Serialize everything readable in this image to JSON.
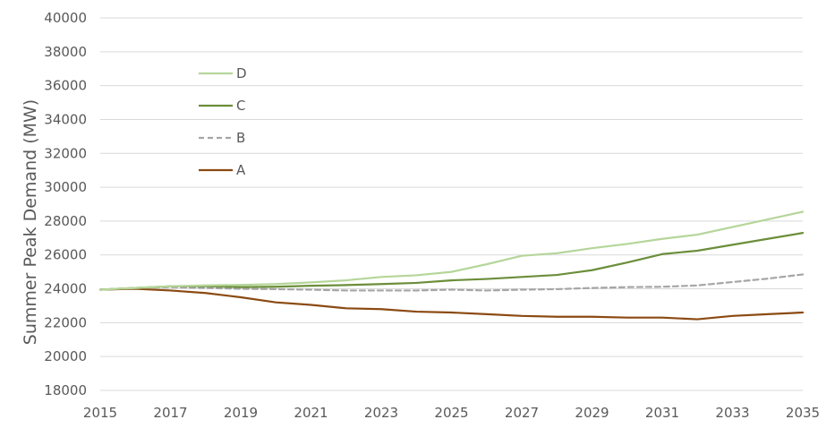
{
  "chart_data": {
    "type": "line",
    "ylabel": "Summer Peak Demand (MW)",
    "xlabel": "",
    "x": [
      2015,
      2016,
      2017,
      2018,
      2019,
      2020,
      2021,
      2022,
      2023,
      2024,
      2025,
      2026,
      2027,
      2028,
      2029,
      2030,
      2031,
      2032,
      2033,
      2034,
      2035
    ],
    "xticks": [
      "2015",
      "2017",
      "2019",
      "2021",
      "2023",
      "2025",
      "2027",
      "2029",
      "2031",
      "2033",
      "2035"
    ],
    "yticks": [
      "18000",
      "20000",
      "22000",
      "24000",
      "26000",
      "28000",
      "30000",
      "32000",
      "34000",
      "36000",
      "38000",
      "40000"
    ],
    "xlim": [
      2015,
      2035
    ],
    "ylim": [
      18000,
      40000
    ],
    "grid": "horizontal",
    "legend_position": "top-left",
    "series": [
      {
        "name": "D",
        "color": "#b5d69a",
        "dash": "solid",
        "values": [
          23950,
          24050,
          24150,
          24200,
          24230,
          24280,
          24380,
          24500,
          24700,
          24800,
          25000,
          25450,
          25950,
          26100,
          26400,
          26650,
          26950,
          27200,
          27650,
          28100,
          28550
        ]
      },
      {
        "name": "C",
        "color": "#6b8e3a",
        "dash": "solid",
        "values": [
          23950,
          24050,
          24150,
          24150,
          24100,
          24120,
          24180,
          24220,
          24280,
          24350,
          24500,
          24580,
          24700,
          24820,
          25100,
          25550,
          26050,
          26250,
          26600,
          26950,
          27300
        ]
      },
      {
        "name": "B",
        "color": "#a6a6a6",
        "dash": "dashed",
        "values": [
          23950,
          24050,
          24100,
          24050,
          24000,
          23980,
          23950,
          23900,
          23900,
          23900,
          23950,
          23900,
          23950,
          23980,
          24050,
          24100,
          24120,
          24200,
          24400,
          24600,
          24850
        ]
      },
      {
        "name": "A",
        "color": "#8b4a12",
        "dash": "solid",
        "values": [
          23950,
          24000,
          23900,
          23750,
          23500,
          23200,
          23050,
          22850,
          22800,
          22650,
          22600,
          22500,
          22400,
          22350,
          22350,
          22300,
          22300,
          22200,
          22400,
          22500,
          22600
        ]
      }
    ]
  }
}
